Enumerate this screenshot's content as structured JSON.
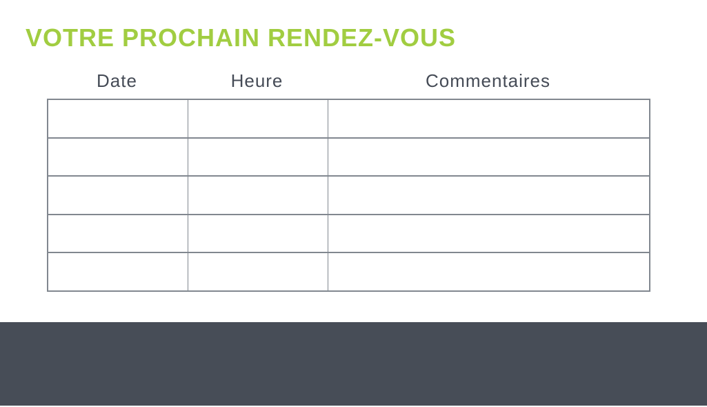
{
  "page": {
    "title": "VOTRE PROCHAIN RENDEZ-VOUS"
  },
  "colors": {
    "title_green": "#a1cd41",
    "header_text": "#454b56",
    "table_border": "#81878f",
    "footer_bg": "#474d57",
    "page_bg": "#ffffff"
  },
  "table": {
    "headers": [
      "Date",
      "Heure",
      "Commentaires"
    ],
    "rows": [
      [
        "",
        "",
        ""
      ],
      [
        "",
        "",
        ""
      ],
      [
        "",
        "",
        ""
      ],
      [
        "",
        "",
        ""
      ],
      [
        "",
        "",
        ""
      ]
    ]
  }
}
